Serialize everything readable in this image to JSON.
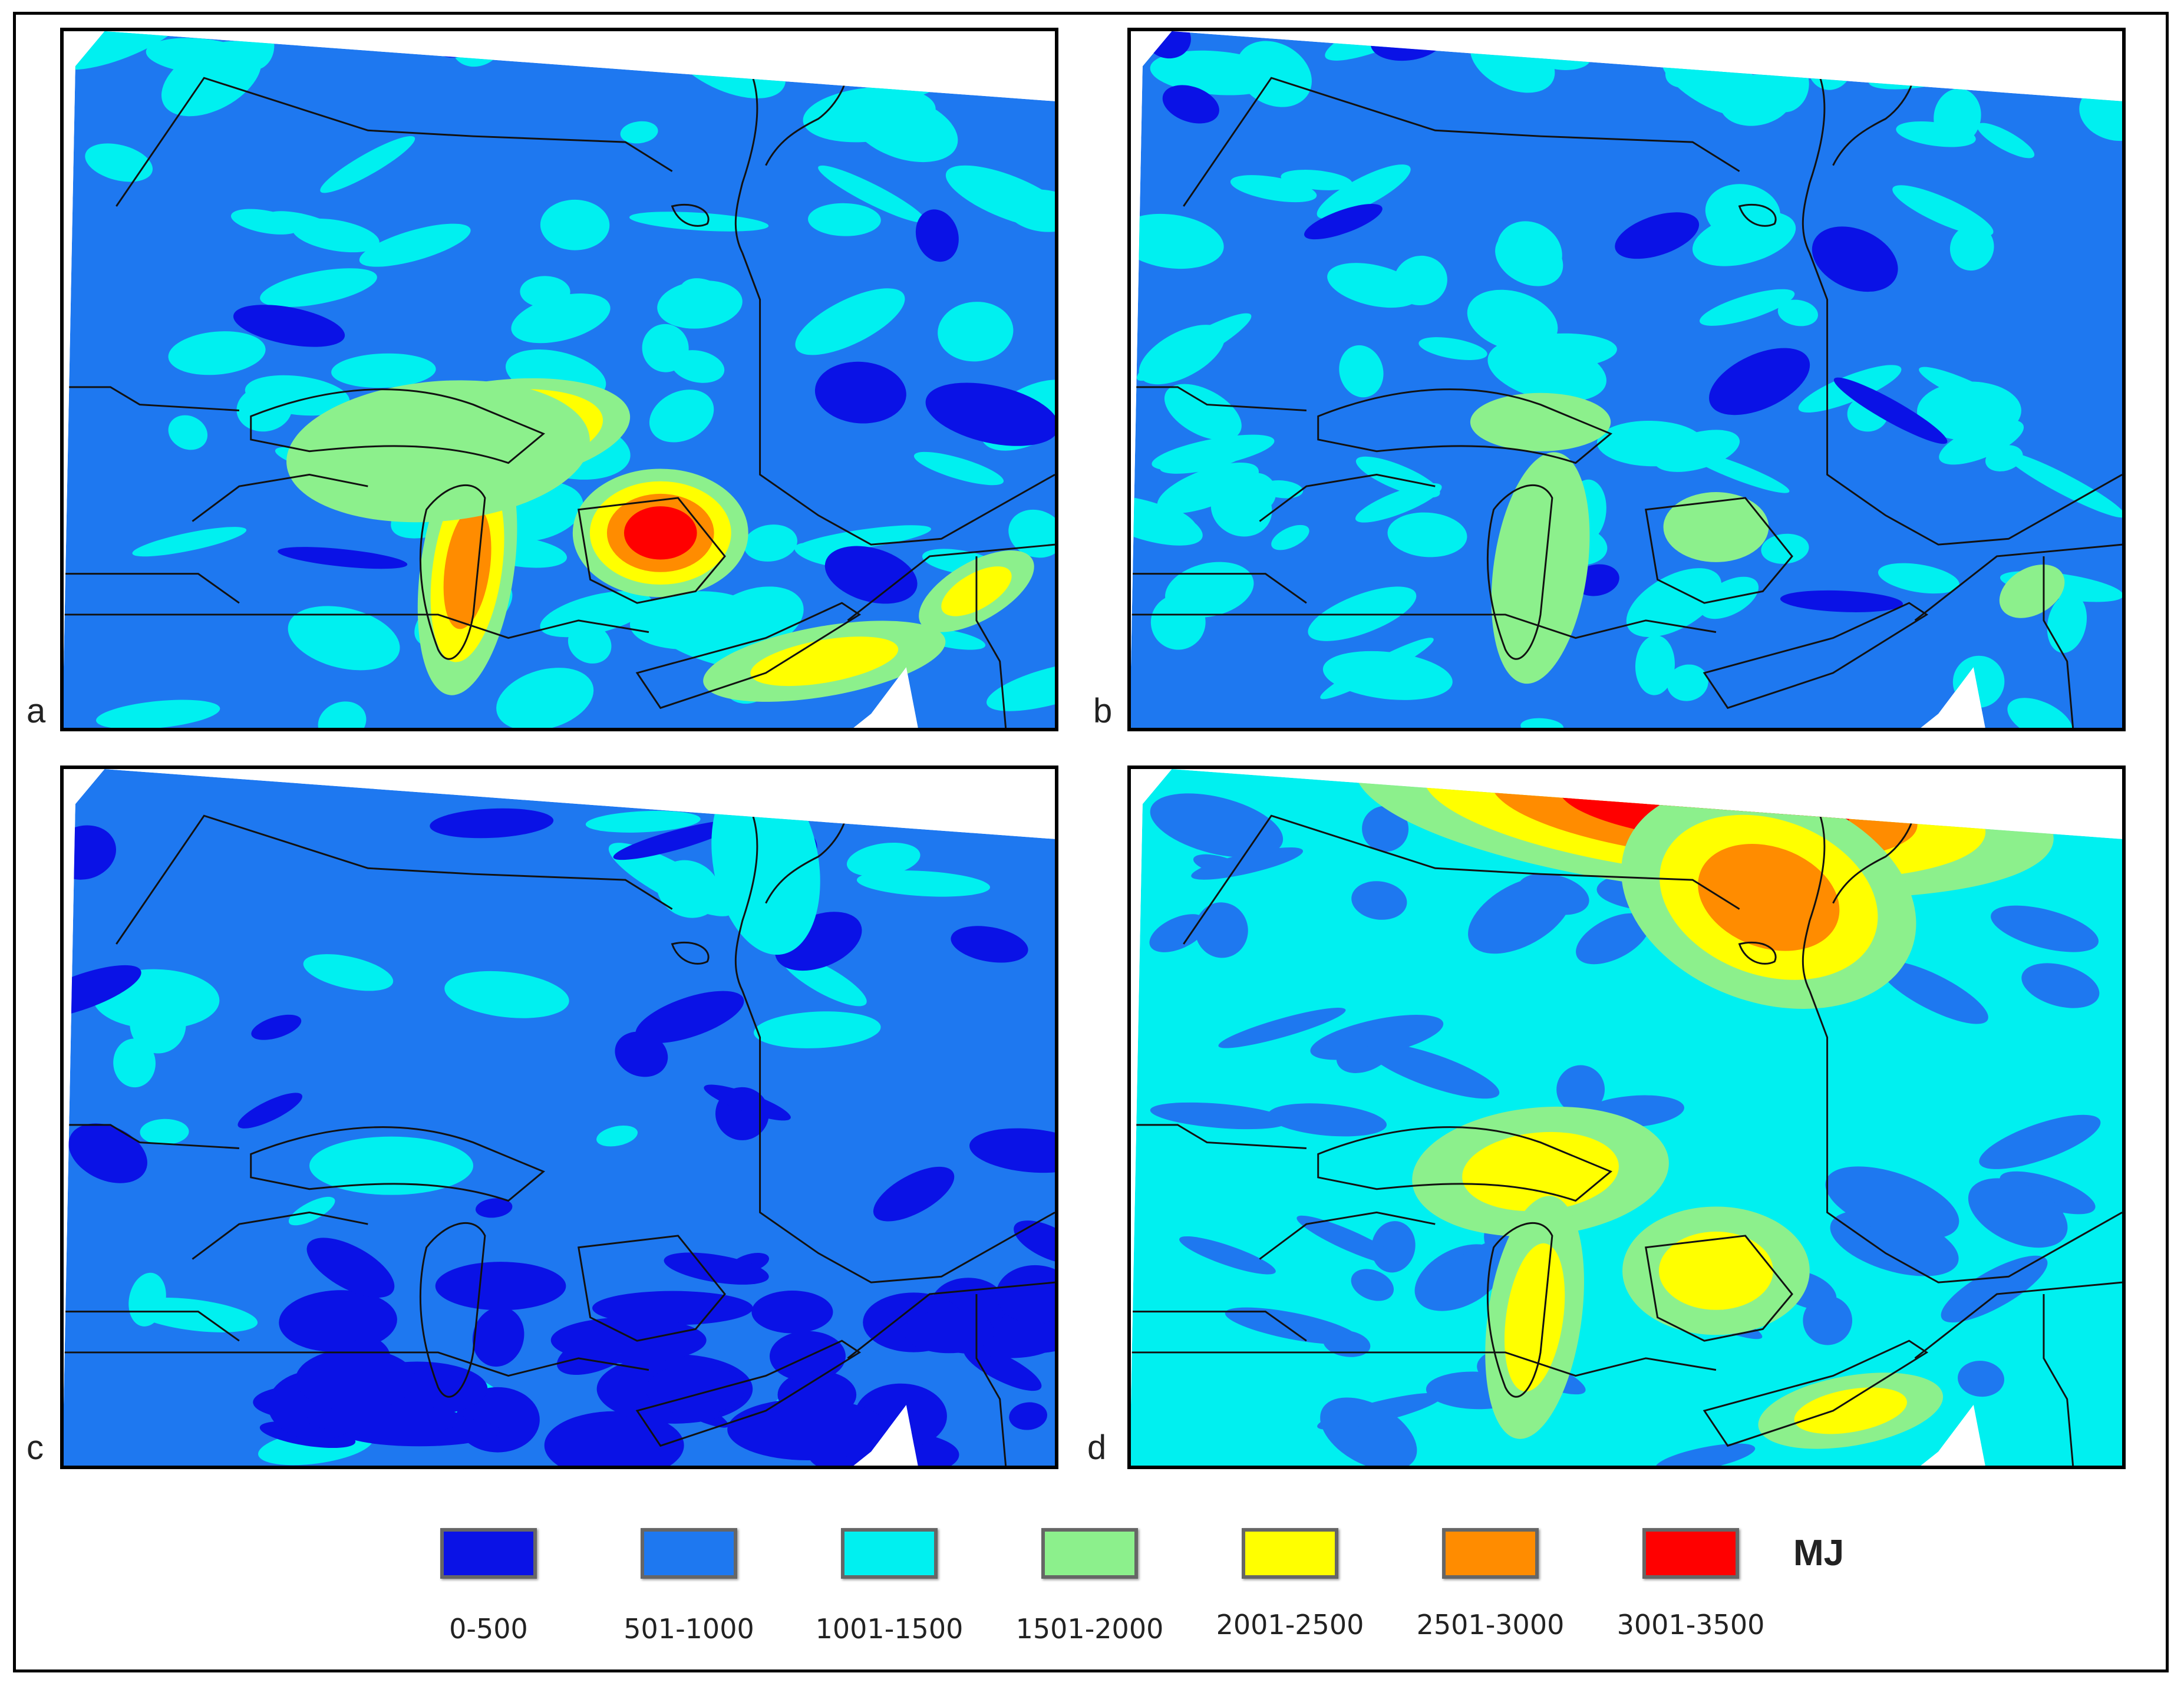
{
  "figure": {
    "panels": [
      {
        "letter": "a",
        "scenario": "a"
      },
      {
        "letter": "b",
        "scenario": "b"
      },
      {
        "letter": "c",
        "scenario": "c"
      },
      {
        "letter": "d",
        "scenario": "d"
      }
    ],
    "legend": {
      "unit": "MJ",
      "classes": [
        {
          "label": "0-500",
          "color": "#0a12e6"
        },
        {
          "label": "501-1000",
          "color": "#1e78f0"
        },
        {
          "label": "1001-1500",
          "color": "#00f0f0"
        },
        {
          "label": "1501-2000",
          "color": "#8cf08c"
        },
        {
          "label": "2001-2500",
          "color": "#ffff00"
        },
        {
          "label": "2501-3000",
          "color": "#ff8c00"
        },
        {
          "label": "3001-3500",
          "color": "#ff0000"
        }
      ]
    }
  }
}
